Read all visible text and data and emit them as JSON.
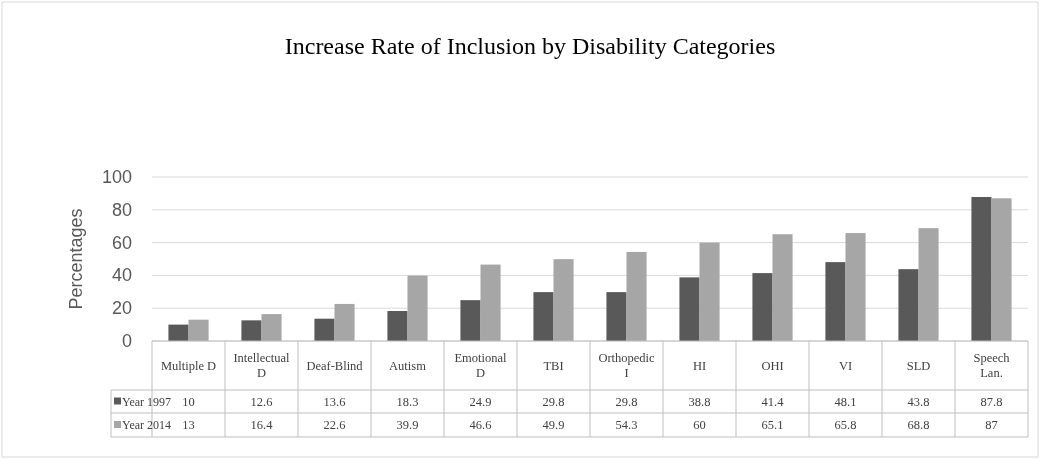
{
  "chart_data": {
    "type": "bar",
    "title": "Increase Rate of Inclusion by Disability Categories",
    "ylabel": "Percentages",
    "categories": [
      "Multiple D",
      "Intellectual D",
      "Deaf-Blind",
      "Autism",
      "Emotional D",
      "TBI",
      "Orthopedic I",
      "HI",
      "OHI",
      "VI",
      "SLD",
      "Speech Lan."
    ],
    "series": [
      {
        "name": "Year 1997",
        "color": "#595959",
        "values": [
          10,
          12.6,
          13.6,
          18.3,
          24.9,
          29.8,
          29.8,
          38.8,
          41.4,
          48.1,
          43.8,
          87.8
        ]
      },
      {
        "name": "Year 2014",
        "color": "#a6a6a6",
        "values": [
          13,
          16.4,
          22.6,
          39.9,
          46.6,
          49.9,
          54.3,
          60,
          65.1,
          65.8,
          68.8,
          87
        ]
      }
    ],
    "ylim": [
      0,
      100
    ],
    "yticks": [
      0,
      20,
      40,
      60,
      80,
      100
    ],
    "grid": "y",
    "legend": "bottom",
    "data_labels": true
  }
}
